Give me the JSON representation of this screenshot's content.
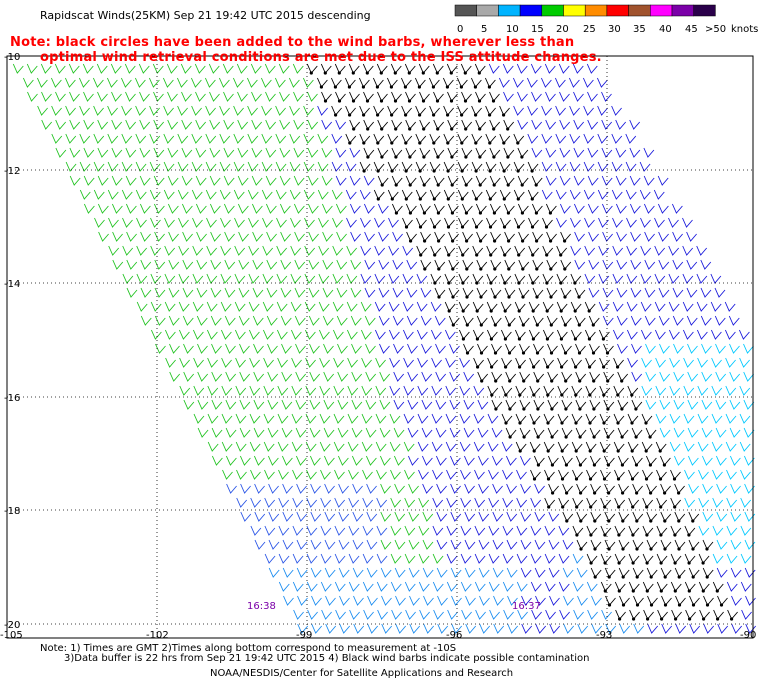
{
  "header": {
    "title": "Rapidscat Winds(25KM)  Sep 21 19:42 UTC 2015 descending"
  },
  "note": {
    "line1": "Note: black circles have been added to the wind barbs, wherever less than",
    "line2": "optimal wind retrieval conditions are met due to the ISS attitude changes."
  },
  "colorbar": {
    "unit": "knots",
    "ticks": [
      "0",
      "5",
      "10",
      "15",
      "20",
      "25",
      "30",
      "35",
      "40",
      "45",
      ">50"
    ],
    "colors": [
      "#555555",
      "#a9a9a9",
      "#00b4ff",
      "#0000ff",
      "#00cc00",
      "#ffff00",
      "#ff8c00",
      "#ff0000",
      "#a0522d",
      "#ff00ff",
      "#7b00a8",
      "#2a004a"
    ]
  },
  "map": {
    "latitude_labels": [
      "-10",
      "-12",
      "-14",
      "-16",
      "-18",
      "-20"
    ],
    "longitude_labels": [
      "-105",
      "-102",
      "-99",
      "-96",
      "-93",
      "-90"
    ],
    "pass_times": [
      "16:38",
      "16:37"
    ]
  },
  "footer": {
    "note1": "Note: 1) Times are GMT 2)Times along bottom correspond to measurement at -10S",
    "note2": "3)Data buffer is 22 hrs from Sep 21 19:42 UTC 2015 4) Black wind barbs indicate possible contamination",
    "credit": "NOAA/NESDIS/Center for Satellite Applications and Research"
  }
}
